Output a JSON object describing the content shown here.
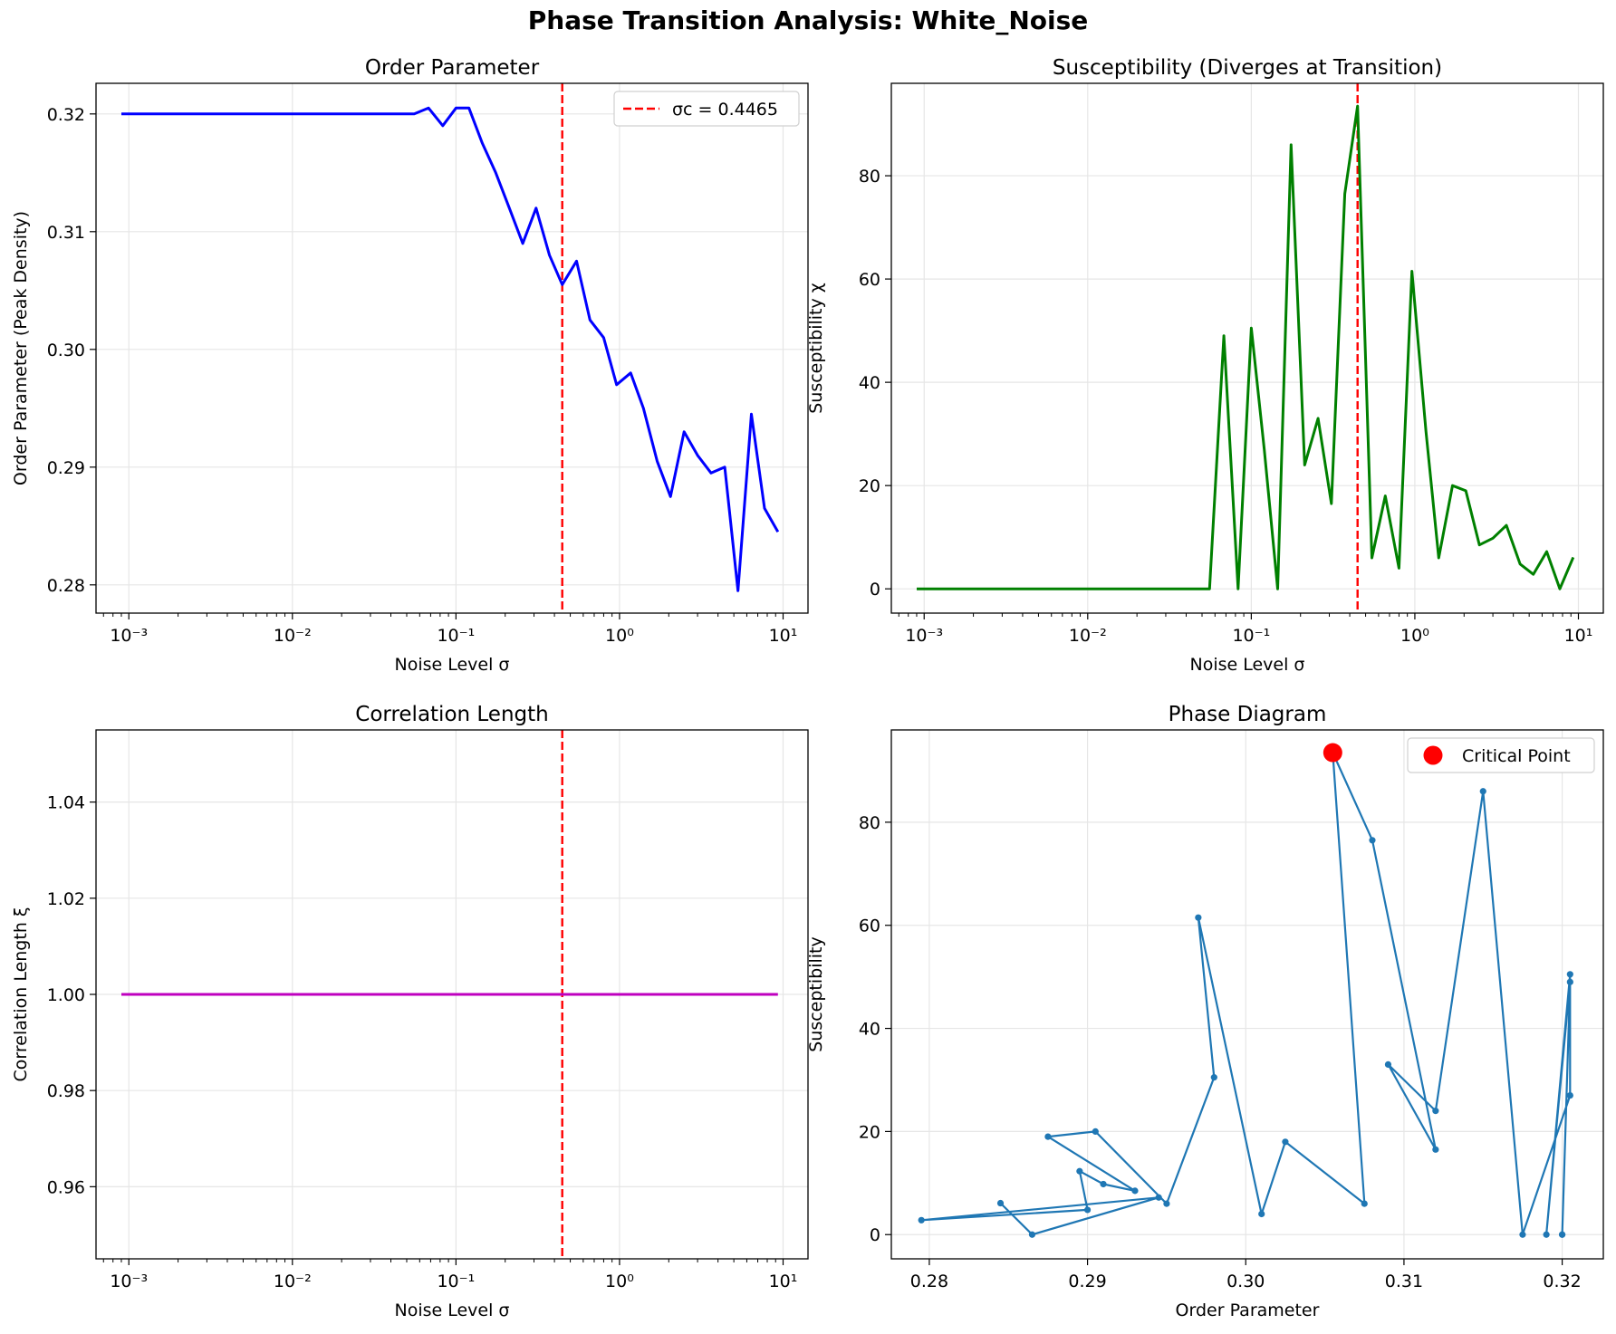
{
  "figure": {
    "title": "Phase Transition Analysis: White_Noise"
  },
  "colors": {
    "order": "#0000ff",
    "susceptibility": "#008000",
    "correlation": "#bf00bf",
    "critical": "#ff0000",
    "phase": "#1f77b4",
    "grid": "#e6e6e6"
  },
  "chart_data": [
    {
      "type": "line",
      "title": "Order Parameter",
      "xlabel": "Noise Level σ",
      "ylabel": "Order Parameter (Peak Density)",
      "xscale": "log",
      "xlim": [
        0.00063,
        14.2
      ],
      "ylim": [
        0.2776,
        0.3226
      ],
      "xticks": [
        0.001,
        0.01,
        0.1,
        1,
        10
      ],
      "xtick_labels": [
        "10⁻³",
        "10⁻²",
        "10⁻¹",
        "10⁰",
        "10¹"
      ],
      "yticks": [
        0.28,
        0.29,
        0.3,
        0.31,
        0.32
      ],
      "ytick_labels": [
        "0.28",
        "0.29",
        "0.30",
        "0.31",
        "0.32"
      ],
      "grid": true,
      "legend": {
        "position": "top-right",
        "entries": [
          "σc = 0.4465"
        ]
      },
      "vline": 0.4465,
      "series": [
        {
          "name": "",
          "x": [
            0.0009,
            0.0556,
            0.068,
            0.083,
            0.1,
            0.12,
            0.145,
            0.175,
            0.212,
            0.256,
            0.309,
            0.373,
            0.4465,
            0.546,
            0.66,
            0.8,
            0.96,
            1.17,
            1.4,
            1.7,
            2.05,
            2.48,
            3.0,
            3.63,
            4.4,
            5.3,
            6.4,
            7.7,
            9.3
          ],
          "y": [
            0.32,
            0.32,
            0.3205,
            0.319,
            0.3205,
            0.3205,
            0.3175,
            0.315,
            0.312,
            0.309,
            0.312,
            0.308,
            0.3055,
            0.3075,
            0.3025,
            0.301,
            0.297,
            0.298,
            0.295,
            0.2905,
            0.2875,
            0.293,
            0.291,
            0.2895,
            0.29,
            0.2795,
            0.2945,
            0.2865,
            0.2845
          ]
        }
      ]
    },
    {
      "type": "line",
      "title": "Susceptibility (Diverges at Transition)",
      "xlabel": "Noise Level σ",
      "ylabel": "Susceptibility χ",
      "xscale": "log",
      "xlim": [
        0.00063,
        14.2
      ],
      "ylim": [
        -4.7,
        97.9
      ],
      "xticks": [
        0.001,
        0.01,
        0.1,
        1,
        10
      ],
      "xtick_labels": [
        "10⁻³",
        "10⁻²",
        "10⁻¹",
        "10⁰",
        "10¹"
      ],
      "yticks": [
        0,
        20,
        40,
        60,
        80
      ],
      "ytick_labels": [
        "0",
        "20",
        "40",
        "60",
        "80"
      ],
      "grid": true,
      "vline": 0.4465,
      "series": [
        {
          "name": "",
          "x": [
            0.0009,
            0.0556,
            0.068,
            0.083,
            0.1,
            0.12,
            0.145,
            0.175,
            0.212,
            0.256,
            0.309,
            0.373,
            0.4465,
            0.546,
            0.66,
            0.8,
            0.96,
            1.17,
            1.4,
            1.7,
            2.05,
            2.48,
            3.0,
            3.63,
            4.4,
            5.3,
            6.4,
            7.7,
            9.3
          ],
          "y": [
            0,
            0,
            49,
            0,
            50.5,
            27,
            0,
            86,
            24,
            33,
            16.5,
            76.5,
            93.5,
            6,
            18,
            4,
            61.5,
            30.5,
            6,
            20,
            19,
            8.5,
            9.8,
            12.3,
            4.8,
            2.8,
            7.2,
            0,
            6.1
          ]
        }
      ]
    },
    {
      "type": "line",
      "title": "Correlation Length",
      "xlabel": "Noise Level σ",
      "ylabel": "Correlation Length ξ",
      "xscale": "log",
      "xlim": [
        0.00063,
        14.2
      ],
      "ylim": [
        0.945,
        1.055
      ],
      "xticks": [
        0.001,
        0.01,
        0.1,
        1,
        10
      ],
      "xtick_labels": [
        "10⁻³",
        "10⁻²",
        "10⁻¹",
        "10⁰",
        "10¹"
      ],
      "yticks": [
        0.96,
        0.98,
        1.0,
        1.02,
        1.04
      ],
      "ytick_labels": [
        "0.96",
        "0.98",
        "1.00",
        "1.02",
        "1.04"
      ],
      "grid": true,
      "vline": 0.4465,
      "series": [
        {
          "name": "",
          "x": [
            0.0009,
            9.3
          ],
          "y": [
            1.0,
            1.0
          ]
        }
      ]
    },
    {
      "type": "scatter",
      "title": "Phase Diagram",
      "xlabel": "Order Parameter",
      "ylabel": "Susceptibility",
      "xlim": [
        0.2776,
        0.3226
      ],
      "ylim": [
        -4.7,
        97.9
      ],
      "xticks": [
        0.28,
        0.29,
        0.3,
        0.31,
        0.32
      ],
      "xtick_labels": [
        "0.28",
        "0.29",
        "0.30",
        "0.31",
        "0.32"
      ],
      "yticks": [
        0,
        20,
        40,
        60,
        80
      ],
      "ytick_labels": [
        "0",
        "20",
        "40",
        "60",
        "80"
      ],
      "grid": true,
      "legend": {
        "position": "top-right",
        "entries": [
          "Critical Point"
        ]
      },
      "critical_point": {
        "x": 0.3055,
        "y": 93.5
      },
      "series": [
        {
          "name": "",
          "x": [
            0.32,
            0.32,
            0.3205,
            0.319,
            0.3205,
            0.3205,
            0.3175,
            0.315,
            0.312,
            0.309,
            0.312,
            0.308,
            0.3055,
            0.3075,
            0.3025,
            0.301,
            0.297,
            0.298,
            0.295,
            0.2905,
            0.2875,
            0.293,
            0.291,
            0.2895,
            0.29,
            0.2795,
            0.2945,
            0.2865,
            0.2845
          ],
          "y": [
            0,
            0,
            49,
            0,
            50.5,
            27,
            0,
            86,
            24,
            33,
            16.5,
            76.5,
            93.5,
            6,
            18,
            4,
            61.5,
            30.5,
            6,
            20,
            19,
            8.5,
            9.8,
            12.3,
            4.8,
            2.8,
            7.2,
            0,
            6.1
          ]
        }
      ]
    }
  ]
}
